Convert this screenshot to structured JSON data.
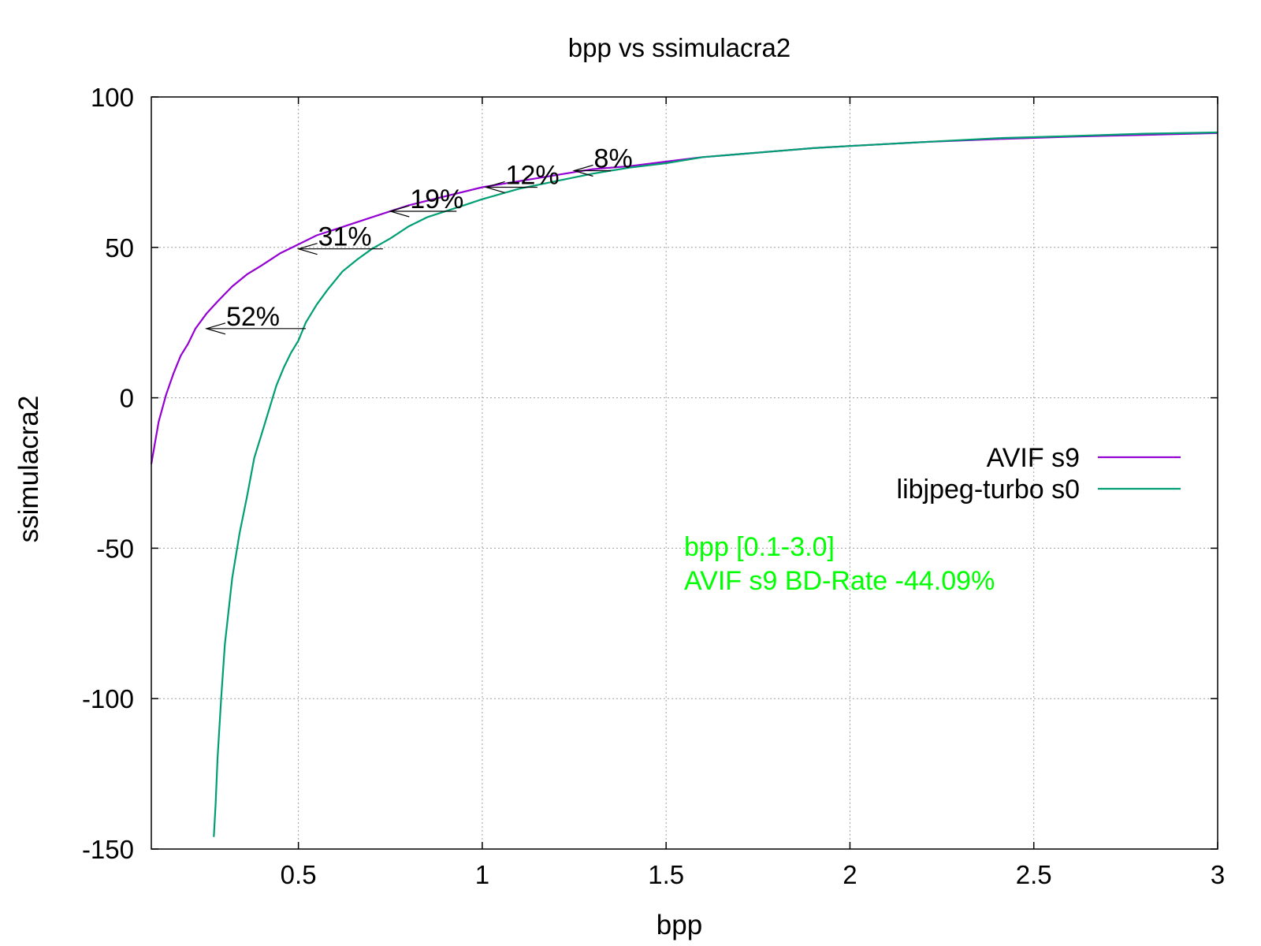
{
  "chart_data": {
    "type": "line",
    "title": "bpp vs ssimulacra2",
    "xlabel": "bpp",
    "ylabel": "ssimulacra2",
    "xlim": [
      0.1,
      3.0
    ],
    "ylim": [
      -150,
      100
    ],
    "xticks": [
      0.5,
      1,
      1.5,
      2,
      2.5,
      3
    ],
    "xtick_labels": [
      "0.5",
      "1",
      "1.5",
      "2",
      "2.5",
      "3"
    ],
    "yticks": [
      100,
      50,
      0,
      -50,
      -100,
      -150
    ],
    "ytick_labels": [
      "100",
      "50",
      "0",
      "-50",
      "-100",
      "-150"
    ],
    "grid": true,
    "legend_position": "right",
    "series": [
      {
        "name": "AVIF s9",
        "color": "#9400d3",
        "x": [
          0.1,
          0.12,
          0.14,
          0.16,
          0.18,
          0.2,
          0.22,
          0.25,
          0.28,
          0.32,
          0.36,
          0.4,
          0.45,
          0.5,
          0.55,
          0.6,
          0.7,
          0.8,
          0.9,
          1.0,
          1.1,
          1.2,
          1.3,
          1.4,
          1.5,
          1.6,
          1.7,
          1.8,
          1.9,
          2.0,
          2.2,
          2.4,
          2.6,
          2.8,
          3.0
        ],
        "y": [
          -22,
          -8,
          1,
          8,
          14,
          18,
          23,
          28,
          32,
          37,
          41,
          44,
          48,
          51,
          54,
          56,
          60,
          64,
          67,
          70,
          72,
          74,
          76,
          77,
          78.5,
          80,
          81,
          82,
          83,
          83.7,
          85,
          86,
          86.8,
          87.4,
          88
        ]
      },
      {
        "name": "libjpeg-turbo s0",
        "color": "#009e73",
        "x": [
          0.27,
          0.275,
          0.28,
          0.29,
          0.3,
          0.32,
          0.34,
          0.36,
          0.38,
          0.4,
          0.42,
          0.44,
          0.46,
          0.48,
          0.5,
          0.52,
          0.55,
          0.58,
          0.62,
          0.66,
          0.7,
          0.75,
          0.8,
          0.85,
          0.9,
          0.95,
          1.0,
          1.1,
          1.2,
          1.3,
          1.4,
          1.5,
          1.6,
          1.7,
          1.8,
          1.9,
          2.0,
          2.2,
          2.4,
          2.6,
          2.8,
          3.0
        ],
        "y": [
          -146,
          -135,
          -120,
          -100,
          -82,
          -60,
          -45,
          -33,
          -20,
          -12,
          -4,
          4,
          10,
          15,
          19,
          25,
          31,
          36,
          42,
          46,
          49.5,
          53,
          57,
          60,
          62,
          64,
          66,
          69.5,
          72,
          74.5,
          76.5,
          78,
          80,
          81,
          82,
          83,
          83.7,
          85,
          86.3,
          87,
          87.8,
          88.2
        ]
      }
    ],
    "annotations": [
      {
        "label": "52%",
        "y": 23,
        "x_from": 0.52,
        "x_to": 0.25
      },
      {
        "label": "31%",
        "y": 49.5,
        "x_from": 0.73,
        "x_to": 0.5
      },
      {
        "label": "19%",
        "y": 62,
        "x_from": 0.93,
        "x_to": 0.75
      },
      {
        "label": "12%",
        "y": 70,
        "x_from": 1.15,
        "x_to": 1.01
      },
      {
        "label": "8%",
        "y": 75.5,
        "x_from": 1.35,
        "x_to": 1.25
      }
    ],
    "info_text": {
      "line1": "bpp [0.1-3.0]",
      "line2": "AVIF s9 BD-Rate -44.09%",
      "color": "#00ff00"
    }
  }
}
